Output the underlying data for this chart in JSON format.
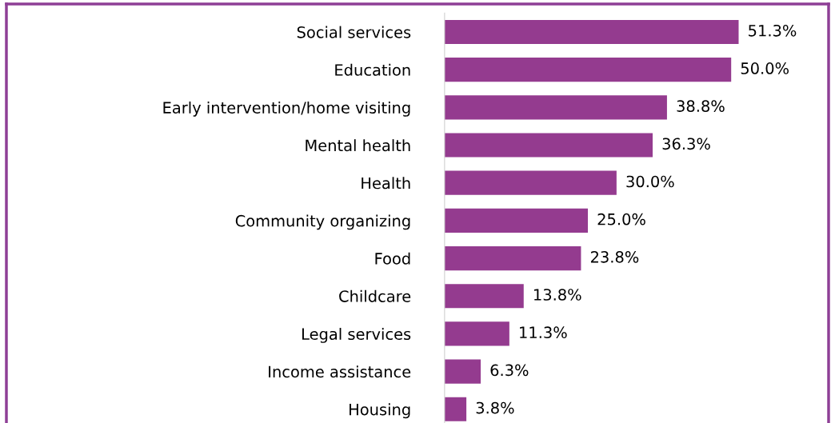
{
  "chart_data": {
    "type": "bar",
    "orientation": "horizontal",
    "categories": [
      "Social services",
      "Education",
      "Early intervention/home visiting",
      "Mental health",
      "Health",
      "Community organizing",
      "Food",
      "Childcare",
      "Legal services",
      "Income assistance",
      "Housing"
    ],
    "values": [
      51.3,
      50.0,
      38.8,
      36.3,
      30.0,
      25.0,
      23.8,
      13.8,
      11.3,
      6.3,
      3.8
    ],
    "value_labels": [
      "51.3%",
      "50.0%",
      "38.8%",
      "36.3%",
      "30.0%",
      "25.0%",
      "23.8%",
      "13.8%",
      "11.3%",
      "6.3%",
      "3.8%"
    ],
    "color": "#943b8f",
    "grid": false,
    "legend": false
  }
}
